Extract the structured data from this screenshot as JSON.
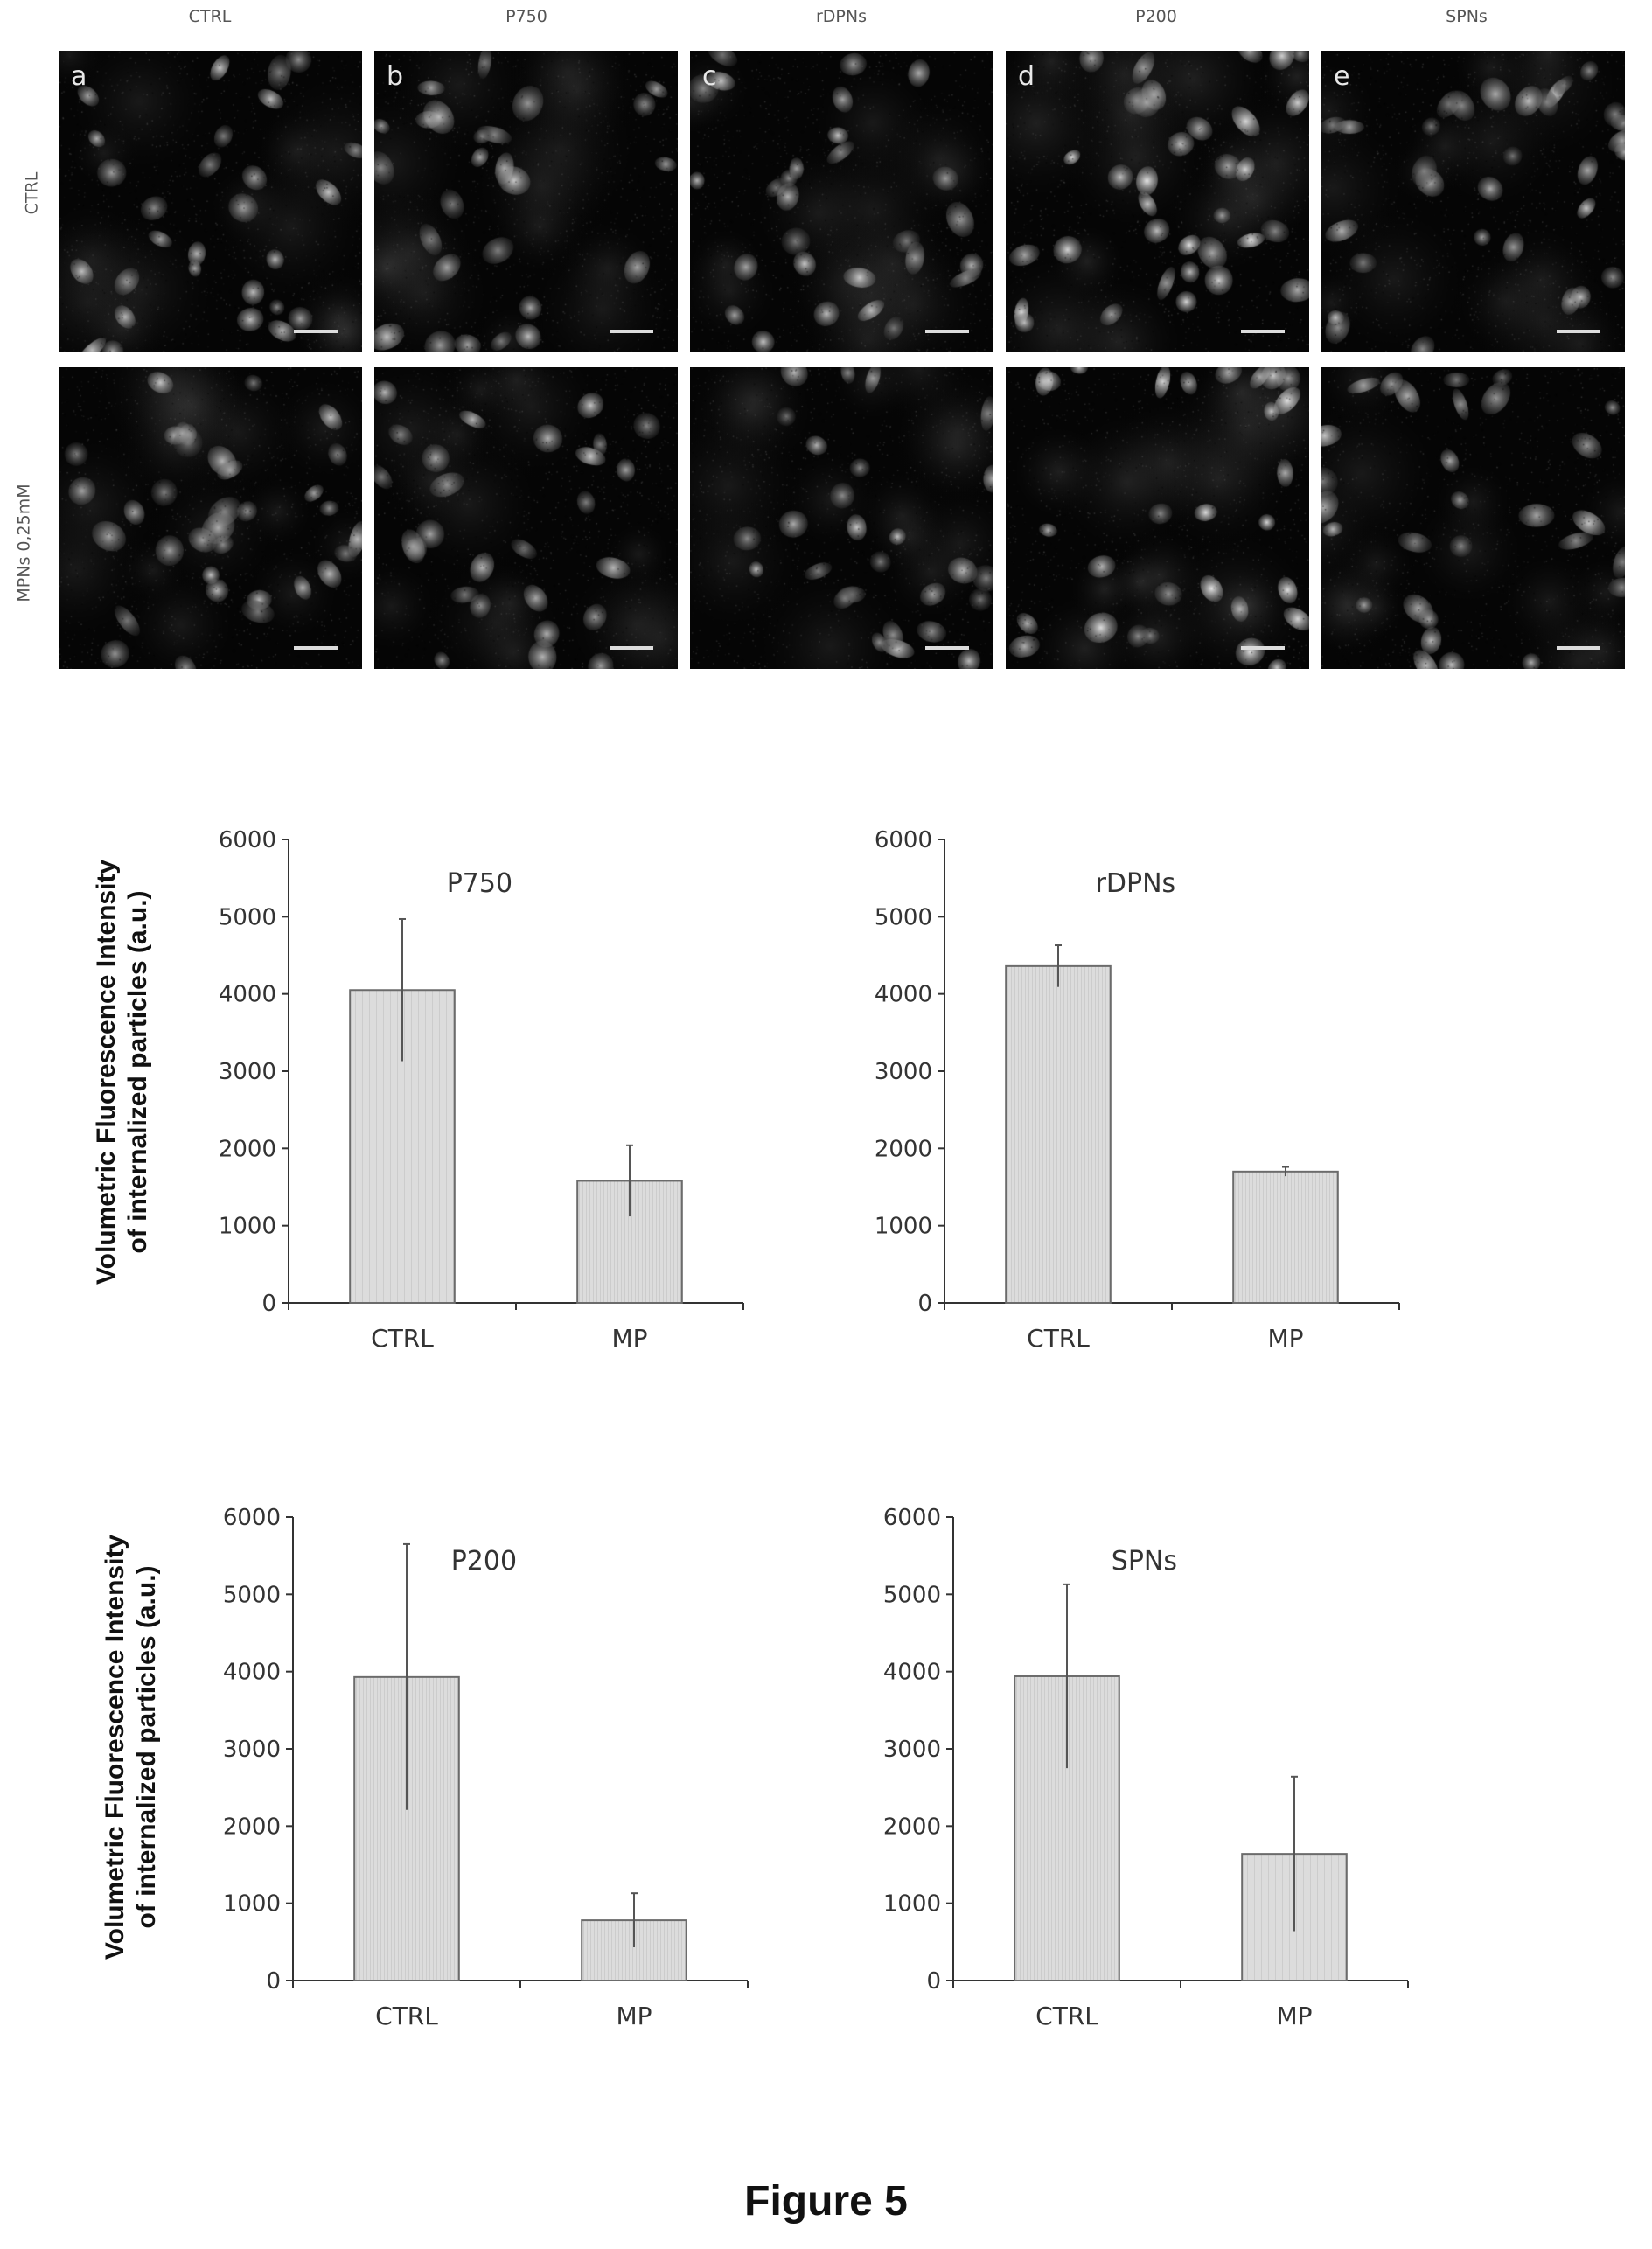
{
  "figure_caption": "Figure 5",
  "micrograph_grid": {
    "column_labels": [
      "CTRL",
      "P750",
      "rDPNs",
      "P200",
      "SPNs"
    ],
    "row_labels": [
      "CTRL",
      "MPNs 0,25mM"
    ],
    "panel_letters": [
      "a",
      "b",
      "c",
      "d",
      "e"
    ]
  },
  "shared_ylabel": {
    "line1": "Volumetric Fluorescence Intensity",
    "line2": "of internalized particles (a.u.)"
  },
  "chart_data": [
    {
      "type": "bar",
      "title": "P750",
      "categories": [
        "CTRL",
        "MP"
      ],
      "values": [
        4050,
        1580
      ],
      "errors": [
        920,
        460
      ],
      "ylim": [
        0,
        6000
      ],
      "yticks": [
        0,
        1000,
        2000,
        3000,
        4000,
        5000,
        6000
      ],
      "xlabel": "",
      "ylabel": ""
    },
    {
      "type": "bar",
      "title": "rDPNs",
      "categories": [
        "CTRL",
        "MP"
      ],
      "values": [
        4360,
        1700
      ],
      "errors": [
        270,
        60
      ],
      "ylim": [
        0,
        6000
      ],
      "yticks": [
        0,
        1000,
        2000,
        3000,
        4000,
        5000,
        6000
      ],
      "xlabel": "",
      "ylabel": ""
    },
    {
      "type": "bar",
      "title": "P200",
      "categories": [
        "CTRL",
        "MP"
      ],
      "values": [
        3930,
        780
      ],
      "errors": [
        1720,
        350
      ],
      "ylim": [
        0,
        6000
      ],
      "yticks": [
        0,
        1000,
        2000,
        3000,
        4000,
        5000,
        6000
      ],
      "xlabel": "",
      "ylabel": ""
    },
    {
      "type": "bar",
      "title": "SPNs",
      "categories": [
        "CTRL",
        "MP"
      ],
      "values": [
        3940,
        1640
      ],
      "errors": [
        1190,
        1000
      ],
      "ylim": [
        0,
        6000
      ],
      "yticks": [
        0,
        1000,
        2000,
        3000,
        4000,
        5000,
        6000
      ],
      "xlabel": "",
      "ylabel": ""
    }
  ],
  "colors": {
    "bar_fill": "#dcdcdc",
    "bar_stroke": "#6b6b6b",
    "axis": "#333333",
    "micrograph_bg": "#060606"
  }
}
